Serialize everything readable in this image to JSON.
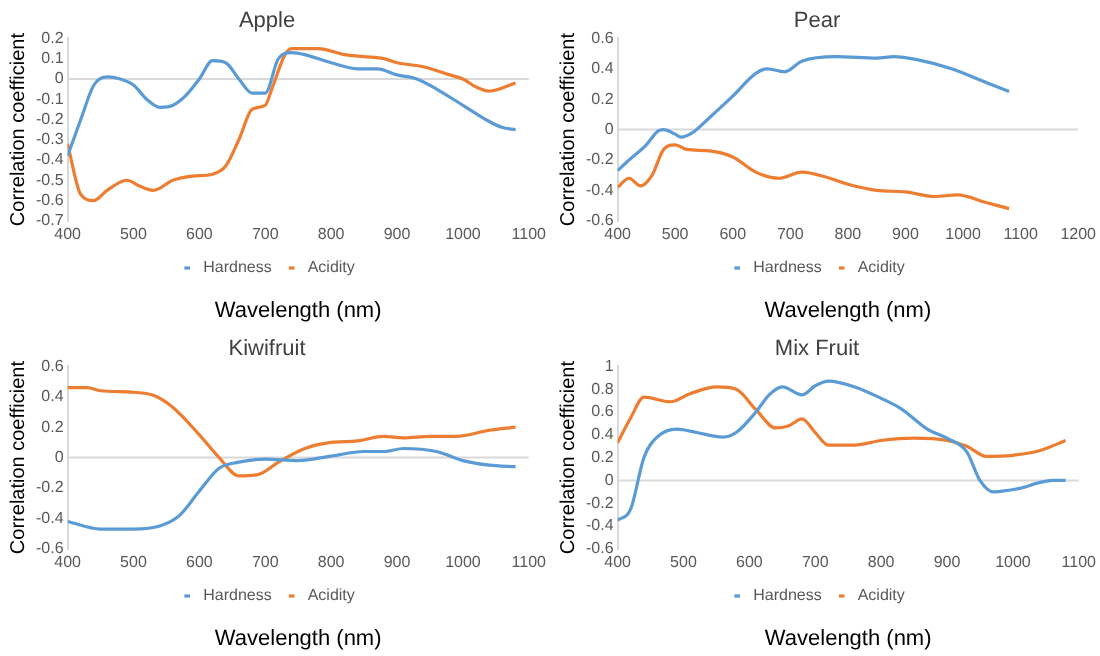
{
  "chart_data": [
    {
      "type": "line",
      "title": "Apple",
      "xlabel": "Wavelength (nm)",
      "ylabel": "Correlation coefficient",
      "xlim": [
        400,
        1100
      ],
      "xticks": [
        400,
        500,
        600,
        700,
        800,
        900,
        1000,
        1100
      ],
      "ylim": [
        -0.7,
        0.2
      ],
      "ref_lines": [
        {
          "axis": "y",
          "value": 0,
          "color": "#d9d9d9"
        }
      ],
      "yticks": [
        -0.7,
        -0.6,
        -0.5,
        -0.4,
        -0.3,
        -0.2,
        -0.1,
        0,
        0.1,
        0.2
      ],
      "grid": false,
      "legend": "bottom",
      "marker": "none",
      "series": [
        {
          "name": "Hardness",
          "color": "#5b9bd5",
          "x": [
            400,
            420,
            440,
            460,
            480,
            500,
            520,
            540,
            560,
            580,
            600,
            620,
            640,
            660,
            680,
            700,
            720,
            740,
            760,
            800,
            840,
            870,
            900,
            930,
            960,
            1000,
            1040,
            1060,
            1080
          ],
          "values": [
            -0.38,
            -0.2,
            -0.03,
            0.01,
            0,
            -0.03,
            -0.1,
            -0.14,
            -0.13,
            -0.08,
            0,
            0.09,
            0.08,
            0,
            -0.07,
            -0.07,
            0.1,
            0.13,
            0.12,
            0.08,
            0.05,
            0.05,
            0.02,
            0,
            -0.05,
            -0.13,
            -0.21,
            -0.24,
            -0.25
          ]
        },
        {
          "name": "Acidity",
          "color": "#ed7d31",
          "x": [
            400,
            420,
            440,
            460,
            490,
            510,
            530,
            560,
            590,
            620,
            640,
            660,
            680,
            700,
            710,
            730,
            740,
            780,
            820,
            850,
            880,
            900,
            940,
            980,
            1000,
            1020,
            1040,
            1080
          ],
          "values": [
            -0.32,
            -0.57,
            -0.6,
            -0.55,
            -0.5,
            -0.53,
            -0.55,
            -0.5,
            -0.48,
            -0.47,
            -0.43,
            -0.3,
            -0.15,
            -0.13,
            -0.05,
            0.12,
            0.15,
            0.15,
            0.12,
            0.11,
            0.1,
            0.08,
            0.06,
            0.02,
            0,
            -0.04,
            -0.06,
            -0.02
          ]
        }
      ]
    },
    {
      "type": "line",
      "title": "Pear",
      "xlabel": "Wavelength (nm)",
      "ylabel": "Correlation coefficient",
      "xlim": [
        400,
        1200
      ],
      "xticks": [
        400,
        500,
        600,
        700,
        800,
        900,
        1000,
        1100,
        1200
      ],
      "ylim": [
        -0.6,
        0.6
      ],
      "ref_lines": [
        {
          "axis": "y",
          "value": 0,
          "color": "#d9d9d9"
        }
      ],
      "yticks": [
        -0.6,
        -0.4,
        -0.2,
        0,
        0.2,
        0.4,
        0.6
      ],
      "grid": false,
      "legend": "bottom",
      "marker": "none",
      "series": [
        {
          "name": "Hardness",
          "color": "#5b9bd5",
          "x": [
            400,
            420,
            450,
            470,
            480,
            500,
            510,
            530,
            560,
            600,
            640,
            660,
            690,
            720,
            780,
            850,
            880,
            920,
            980,
            1040,
            1080
          ],
          "values": [
            -0.27,
            -0.2,
            -0.1,
            -0.01,
            0,
            -0.03,
            -0.05,
            -0.02,
            0.08,
            0.22,
            0.37,
            0.4,
            0.38,
            0.45,
            0.48,
            0.47,
            0.48,
            0.46,
            0.4,
            0.31,
            0.25
          ]
        },
        {
          "name": "Acidity",
          "color": "#ed7d31",
          "x": [
            400,
            420,
            440,
            460,
            480,
            500,
            520,
            560,
            600,
            640,
            680,
            720,
            760,
            800,
            850,
            900,
            950,
            990,
            1040,
            1080
          ],
          "values": [
            -0.38,
            -0.32,
            -0.37,
            -0.3,
            -0.13,
            -0.1,
            -0.13,
            -0.14,
            -0.18,
            -0.28,
            -0.32,
            -0.28,
            -0.31,
            -0.36,
            -0.4,
            -0.41,
            -0.44,
            -0.43,
            -0.48,
            -0.52
          ]
        }
      ]
    },
    {
      "type": "line",
      "title": "Kiwifruit",
      "xlabel": "Wavelength (nm)",
      "ylabel": "Correlation coefficient",
      "xlim": [
        400,
        1100
      ],
      "xticks": [
        400,
        500,
        600,
        700,
        800,
        900,
        1000,
        1100
      ],
      "ylim": [
        -0.6,
        0.6
      ],
      "ref_lines": [
        {
          "axis": "y",
          "value": 0,
          "color": "#d9d9d9"
        }
      ],
      "yticks": [
        -0.6,
        -0.4,
        -0.2,
        0,
        0.2,
        0.4,
        0.6
      ],
      "grid": false,
      "legend": "bottom",
      "marker": "none",
      "series": [
        {
          "name": "Hardness",
          "color": "#5b9bd5",
          "x": [
            400,
            450,
            500,
            540,
            570,
            600,
            630,
            660,
            700,
            750,
            800,
            850,
            880,
            910,
            960,
            1000,
            1040,
            1080
          ],
          "values": [
            -0.42,
            -0.47,
            -0.47,
            -0.45,
            -0.38,
            -0.22,
            -0.07,
            -0.03,
            -0.01,
            -0.02,
            0.01,
            0.04,
            0.04,
            0.06,
            0.04,
            -0.02,
            -0.05,
            -0.06
          ]
        },
        {
          "name": "Acidity",
          "color": "#ed7d31",
          "x": [
            400,
            430,
            450,
            500,
            530,
            560,
            600,
            630,
            660,
            690,
            720,
            760,
            800,
            840,
            880,
            910,
            950,
            990,
            1040,
            1080
          ],
          "values": [
            0.46,
            0.46,
            0.44,
            0.43,
            0.41,
            0.33,
            0.15,
            0,
            -0.12,
            -0.11,
            -0.03,
            0.06,
            0.1,
            0.11,
            0.14,
            0.13,
            0.14,
            0.14,
            0.18,
            0.2
          ]
        }
      ]
    },
    {
      "type": "line",
      "title": "Mix Fruit",
      "xlabel": "Wavelength (nm)",
      "ylabel": "Correlation coefficient",
      "xlim": [
        400,
        1100
      ],
      "xticks": [
        400,
        500,
        600,
        700,
        800,
        900,
        1000,
        1100
      ],
      "ylim": [
        -0.6,
        1
      ],
      "ref_lines": [
        {
          "axis": "y",
          "value": 0,
          "color": "#d9d9d9"
        }
      ],
      "yticks": [
        -0.6,
        -0.4,
        -0.2,
        0,
        0.2,
        0.4,
        0.6,
        0.8,
        1
      ],
      "grid": false,
      "legend": "bottom",
      "marker": "none",
      "series": [
        {
          "name": "Hardness",
          "color": "#5b9bd5",
          "x": [
            400,
            420,
            440,
            460,
            490,
            520,
            560,
            580,
            610,
            630,
            650,
            680,
            700,
            720,
            760,
            800,
            830,
            870,
            900,
            930,
            950,
            970,
            1010,
            1040,
            1060,
            1080
          ],
          "values": [
            -0.35,
            -0.25,
            0.2,
            0.38,
            0.45,
            0.42,
            0.38,
            0.42,
            0.6,
            0.75,
            0.82,
            0.75,
            0.83,
            0.87,
            0.82,
            0.72,
            0.63,
            0.45,
            0.37,
            0.25,
            0,
            -0.1,
            -0.07,
            -0.02,
            0,
            0
          ]
        },
        {
          "name": "Acidity",
          "color": "#ed7d31",
          "x": [
            400,
            420,
            440,
            480,
            510,
            550,
            580,
            610,
            640,
            660,
            680,
            700,
            720,
            760,
            800,
            850,
            900,
            930,
            960,
            1000,
            1040,
            1080
          ],
          "values": [
            0.33,
            0.55,
            0.73,
            0.69,
            0.76,
            0.82,
            0.8,
            0.62,
            0.46,
            0.48,
            0.54,
            0.42,
            0.31,
            0.31,
            0.35,
            0.37,
            0.35,
            0.3,
            0.21,
            0.22,
            0.26,
            0.35
          ]
        }
      ]
    }
  ]
}
